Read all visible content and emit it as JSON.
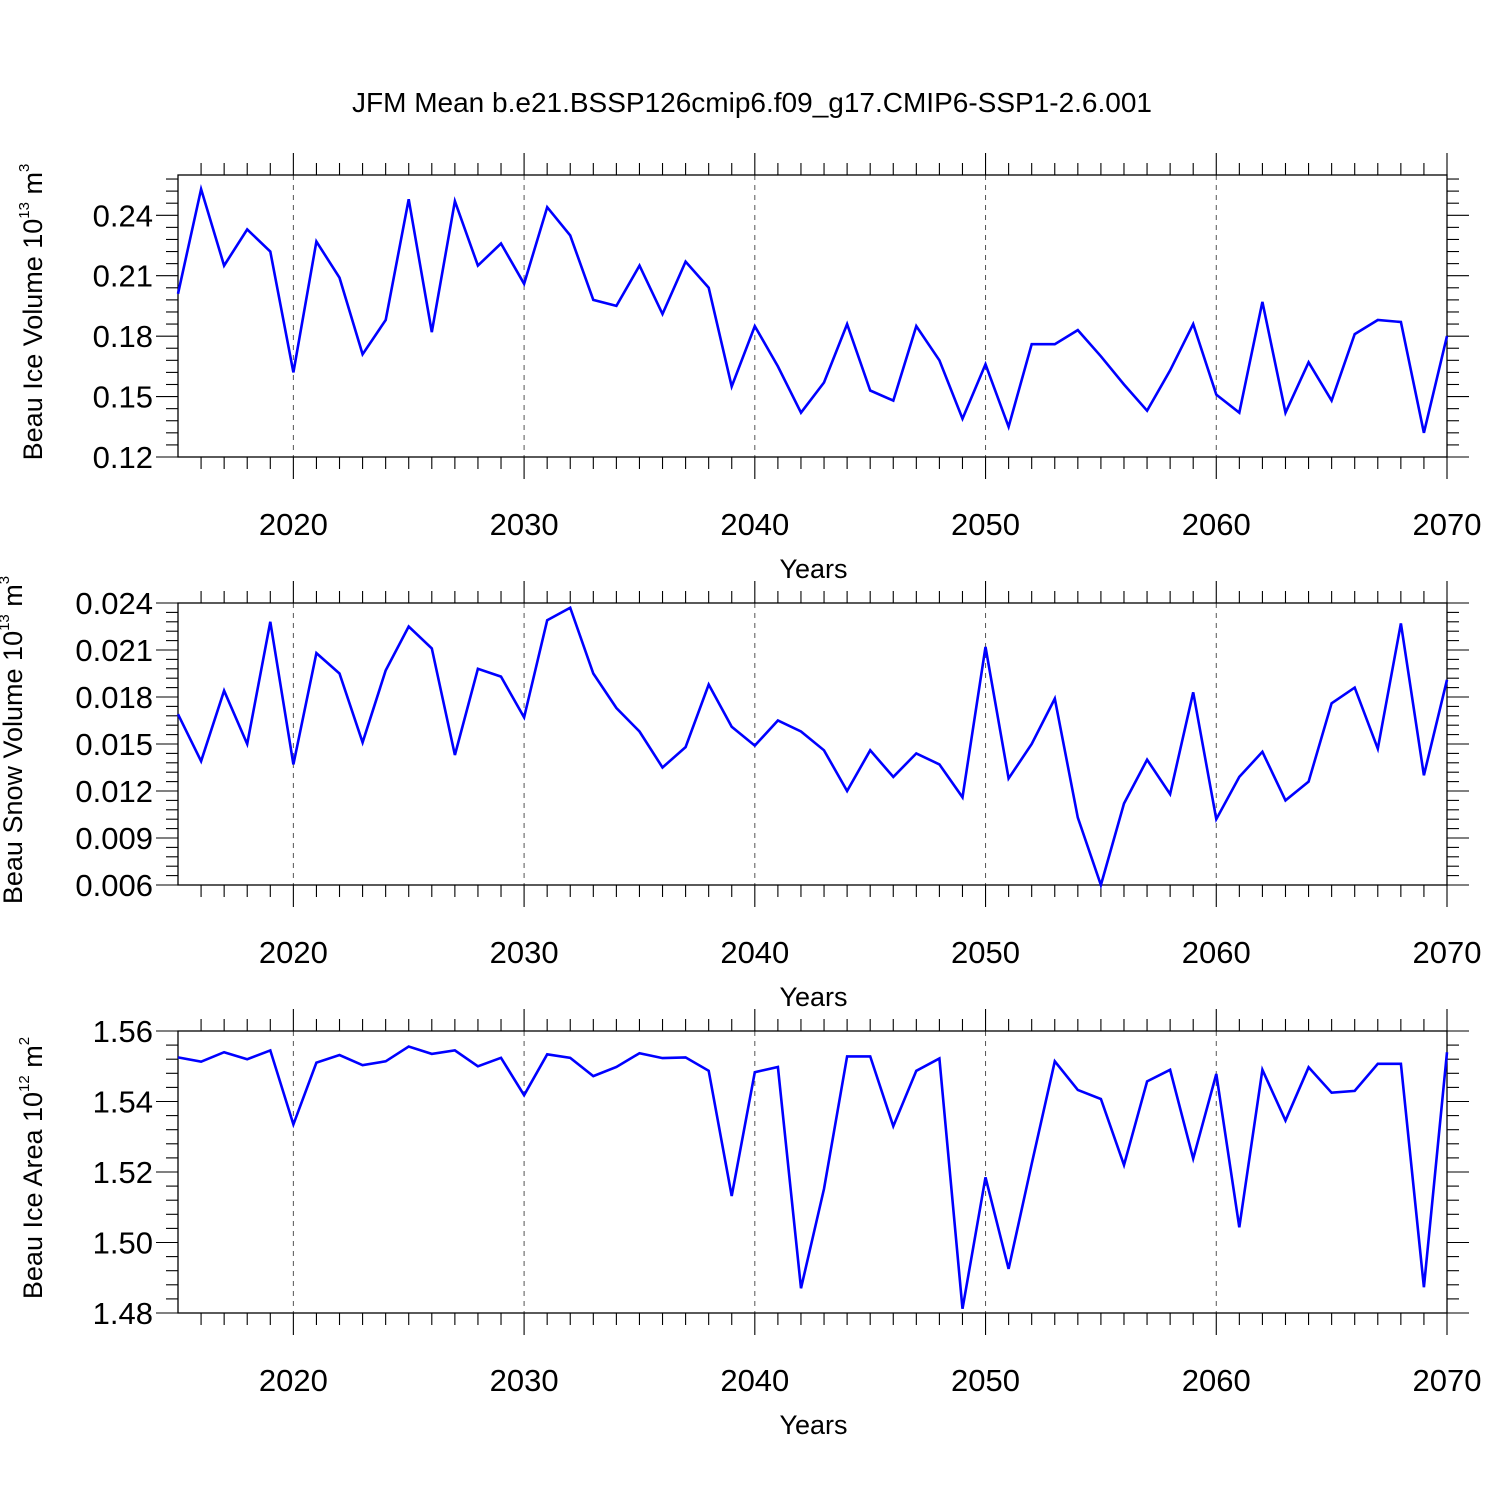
{
  "title": "JFM Mean b.e21.BSSP126cmip6.f09_g17.CMIP6-SSP1-2.6.001",
  "chart_data": [
    {
      "type": "line",
      "ylabel": "Beau Ice Volume 10",
      "ylabel_exp": "13",
      "ylabel_unit": " m",
      "ylabel_unit_exp": "3",
      "xlabel": "Years",
      "xlim": [
        2015,
        2070
      ],
      "ylim": [
        0.12,
        0.26
      ],
      "yticks": [
        "0.12",
        "0.15",
        "0.18",
        "0.21",
        "0.24"
      ],
      "xticks": [
        "2020",
        "2030",
        "2040",
        "2050",
        "2060",
        "2070"
      ],
      "x": [
        2015,
        2016,
        2017,
        2018,
        2019,
        2020,
        2021,
        2022,
        2023,
        2024,
        2025,
        2026,
        2027,
        2028,
        2029,
        2030,
        2031,
        2032,
        2033,
        2034,
        2035,
        2036,
        2037,
        2038,
        2039,
        2040,
        2041,
        2042,
        2043,
        2044,
        2045,
        2046,
        2047,
        2048,
        2049,
        2050,
        2051,
        2052,
        2053,
        2054,
        2055,
        2056,
        2057,
        2058,
        2059,
        2060,
        2061,
        2062,
        2063,
        2064,
        2065,
        2066,
        2067,
        2068,
        2069,
        2070
      ],
      "values": [
        0.201,
        0.253,
        0.215,
        0.233,
        0.222,
        0.162,
        0.227,
        0.209,
        0.171,
        0.188,
        0.248,
        0.182,
        0.247,
        0.215,
        0.226,
        0.206,
        0.244,
        0.23,
        0.198,
        0.195,
        0.215,
        0.191,
        0.217,
        0.204,
        0.155,
        0.185,
        0.165,
        0.142,
        0.157,
        0.186,
        0.153,
        0.148,
        0.185,
        0.168,
        0.139,
        0.166,
        0.135,
        0.176,
        0.176,
        0.183,
        0.17,
        0.156,
        0.143,
        0.163,
        0.186,
        0.151,
        0.142,
        0.197,
        0.142,
        0.167,
        0.148,
        0.181,
        0.188,
        0.187,
        0.132,
        0.18
      ]
    },
    {
      "type": "line",
      "ylabel": "Beau Snow Volume 10",
      "ylabel_exp": "13",
      "ylabel_unit": " m",
      "ylabel_unit_exp": "3",
      "xlabel": "Years",
      "xlim": [
        2015,
        2070
      ],
      "ylim": [
        0.006,
        0.024
      ],
      "yticks": [
        "0.006",
        "0.009",
        "0.012",
        "0.015",
        "0.018",
        "0.021",
        "0.024"
      ],
      "xticks": [
        "2020",
        "2030",
        "2040",
        "2050",
        "2060",
        "2070"
      ],
      "x": [
        2015,
        2016,
        2017,
        2018,
        2019,
        2020,
        2021,
        2022,
        2023,
        2024,
        2025,
        2026,
        2027,
        2028,
        2029,
        2030,
        2031,
        2032,
        2033,
        2034,
        2035,
        2036,
        2037,
        2038,
        2039,
        2040,
        2041,
        2042,
        2043,
        2044,
        2045,
        2046,
        2047,
        2048,
        2049,
        2050,
        2051,
        2052,
        2053,
        2054,
        2055,
        2056,
        2057,
        2058,
        2059,
        2060,
        2061,
        2062,
        2063,
        2064,
        2065,
        2066,
        2067,
        2068,
        2069,
        2070
      ],
      "values": [
        0.0169,
        0.0139,
        0.0184,
        0.015,
        0.0228,
        0.0137,
        0.0208,
        0.0195,
        0.0151,
        0.0197,
        0.0225,
        0.0211,
        0.0143,
        0.0198,
        0.0193,
        0.0167,
        0.0229,
        0.0237,
        0.0195,
        0.0173,
        0.0158,
        0.0135,
        0.0148,
        0.0188,
        0.0161,
        0.0149,
        0.0165,
        0.0158,
        0.0146,
        0.012,
        0.0146,
        0.0129,
        0.0144,
        0.0137,
        0.0116,
        0.0212,
        0.0128,
        0.015,
        0.0179,
        0.0103,
        0.006,
        0.0112,
        0.014,
        0.0118,
        0.0183,
        0.0102,
        0.0129,
        0.0145,
        0.0114,
        0.0126,
        0.0176,
        0.0186,
        0.0147,
        0.0227,
        0.013,
        0.0191
      ]
    },
    {
      "type": "line",
      "ylabel": "Beau Ice Area 10",
      "ylabel_exp": "12",
      "ylabel_unit": " m",
      "ylabel_unit_exp": "2",
      "xlabel": "Years",
      "xlim": [
        2015,
        2070
      ],
      "ylim": [
        1.48,
        1.56
      ],
      "yticks": [
        "1.48",
        "1.50",
        "1.52",
        "1.54",
        "1.56"
      ],
      "xticks": [
        "2020",
        "2030",
        "2040",
        "2050",
        "2060",
        "2070"
      ],
      "x": [
        2015,
        2016,
        2017,
        2018,
        2019,
        2020,
        2021,
        2022,
        2023,
        2024,
        2025,
        2026,
        2027,
        2028,
        2029,
        2030,
        2031,
        2032,
        2033,
        2034,
        2035,
        2036,
        2037,
        2038,
        2039,
        2040,
        2041,
        2042,
        2043,
        2044,
        2045,
        2046,
        2047,
        2048,
        2049,
        2050,
        2051,
        2052,
        2053,
        2054,
        2055,
        2056,
        2057,
        2058,
        2059,
        2060,
        2061,
        2062,
        2063,
        2064,
        2065,
        2066,
        2067,
        2068,
        2069,
        2070
      ],
      "values": [
        1.5525,
        1.5513,
        1.554,
        1.552,
        1.5545,
        1.5335,
        1.551,
        1.5532,
        1.5503,
        1.5514,
        1.5556,
        1.5535,
        1.5545,
        1.55,
        1.5524,
        1.5418,
        1.5534,
        1.5524,
        1.5472,
        1.5498,
        1.5537,
        1.5523,
        1.5525,
        1.5487,
        1.5132,
        1.5483,
        1.5498,
        1.487,
        1.5152,
        1.5528,
        1.5528,
        1.533,
        1.5487,
        1.5522,
        1.4812,
        1.5185,
        1.4925,
        1.5223,
        1.5514,
        1.5433,
        1.5407,
        1.522,
        1.5457,
        1.549,
        1.5238,
        1.5478,
        1.5043,
        1.549,
        1.5346,
        1.5497,
        1.5425,
        1.543,
        1.5507,
        1.5507,
        1.4873,
        1.554
      ]
    }
  ]
}
